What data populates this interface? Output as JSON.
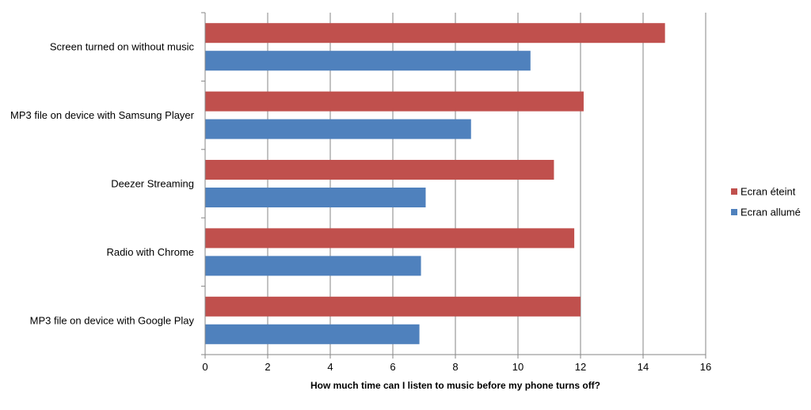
{
  "chart_data": {
    "type": "bar",
    "orientation": "horizontal",
    "categories": [
      "Screen turned on without music",
      "MP3 file on device with Samsung Player",
      "Deezer Streaming",
      "Radio with Chrome",
      "MP3 file on device with Google Play"
    ],
    "series": [
      {
        "name": "Ecran éteint",
        "color": "#c0504d",
        "values": [
          14.7,
          12.1,
          11.15,
          11.8,
          12.0
        ]
      },
      {
        "name": "Ecran allumé",
        "color": "#4f81bd",
        "values": [
          10.4,
          8.5,
          7.05,
          6.9,
          6.85
        ]
      }
    ],
    "xlabel": "How much time can I listen to music before my phone turns off?",
    "ylabel": "",
    "title": "",
    "xlim": [
      0,
      16
    ],
    "xticks": [
      0,
      2,
      4,
      6,
      8,
      10,
      12,
      14,
      16
    ],
    "xtick_labels": [
      "0",
      "2",
      "4",
      "6",
      "8",
      "10",
      "12",
      "14",
      "16"
    ],
    "grid": true,
    "legend_position": "right"
  }
}
